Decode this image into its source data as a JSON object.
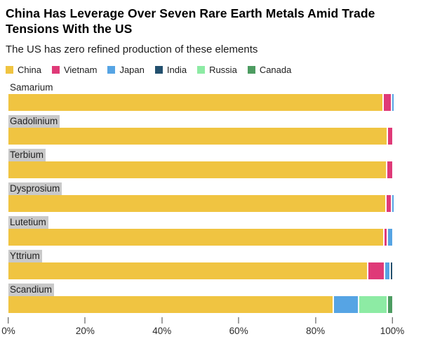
{
  "header": {
    "title": "China Has Leverage Over Seven Rare Earth Metals Amid Trade Tensions With the US",
    "subtitle": "The US has zero refined production of these elements"
  },
  "colors": {
    "china": "#F0C441",
    "vietnam": "#DF3A78",
    "japan": "#56A4E4",
    "india": "#23506E",
    "russia": "#8DEBA4",
    "canada": "#4D9C61",
    "label_highlight": "#C9C9C9",
    "axis_text": "#2B2B2B"
  },
  "chart_data": {
    "type": "bar",
    "orientation": "horizontal",
    "stacked": true,
    "unit": "%",
    "title": "China Has Leverage Over Seven Rare Earth Metals Amid Trade Tensions With the US",
    "subtitle": "The US has zero refined production of these elements",
    "categories": [
      "Samarium",
      "Gadolinium",
      "Terbium",
      "Dysprosium",
      "Lutetium",
      "Yttrium",
      "Scandium"
    ],
    "series": [
      {
        "name": "China",
        "color": "#F0C441",
        "values": [
          97.5,
          98.6,
          98.4,
          98.2,
          97.7,
          93.5,
          84.5
        ]
      },
      {
        "name": "Vietnam",
        "color": "#DF3A78",
        "values": [
          2.1,
          1.4,
          1.6,
          1.5,
          0.9,
          4.3,
          0
        ]
      },
      {
        "name": "Japan",
        "color": "#56A4E4",
        "values": [
          0.4,
          0,
          0,
          0.3,
          1.4,
          1.4,
          6.5
        ]
      },
      {
        "name": "India",
        "color": "#23506E",
        "values": [
          0,
          0,
          0,
          0,
          0,
          0.8,
          0
        ]
      },
      {
        "name": "Russia",
        "color": "#8DEBA4",
        "values": [
          0,
          0,
          0,
          0,
          0,
          0,
          7.5
        ]
      },
      {
        "name": "Canada",
        "color": "#4D9C61",
        "values": [
          0,
          0,
          0,
          0,
          0,
          0,
          1.5
        ]
      }
    ],
    "x_ticks": [
      "0%",
      "20%",
      "40%",
      "60%",
      "80%",
      "100%"
    ],
    "xlim": [
      0,
      100
    ],
    "grid": false,
    "legend_position": "top",
    "highlighted_categories": [
      "Gadolinium",
      "Terbium",
      "Dysprosium",
      "Lutetium",
      "Yttrium",
      "Scandium"
    ]
  }
}
